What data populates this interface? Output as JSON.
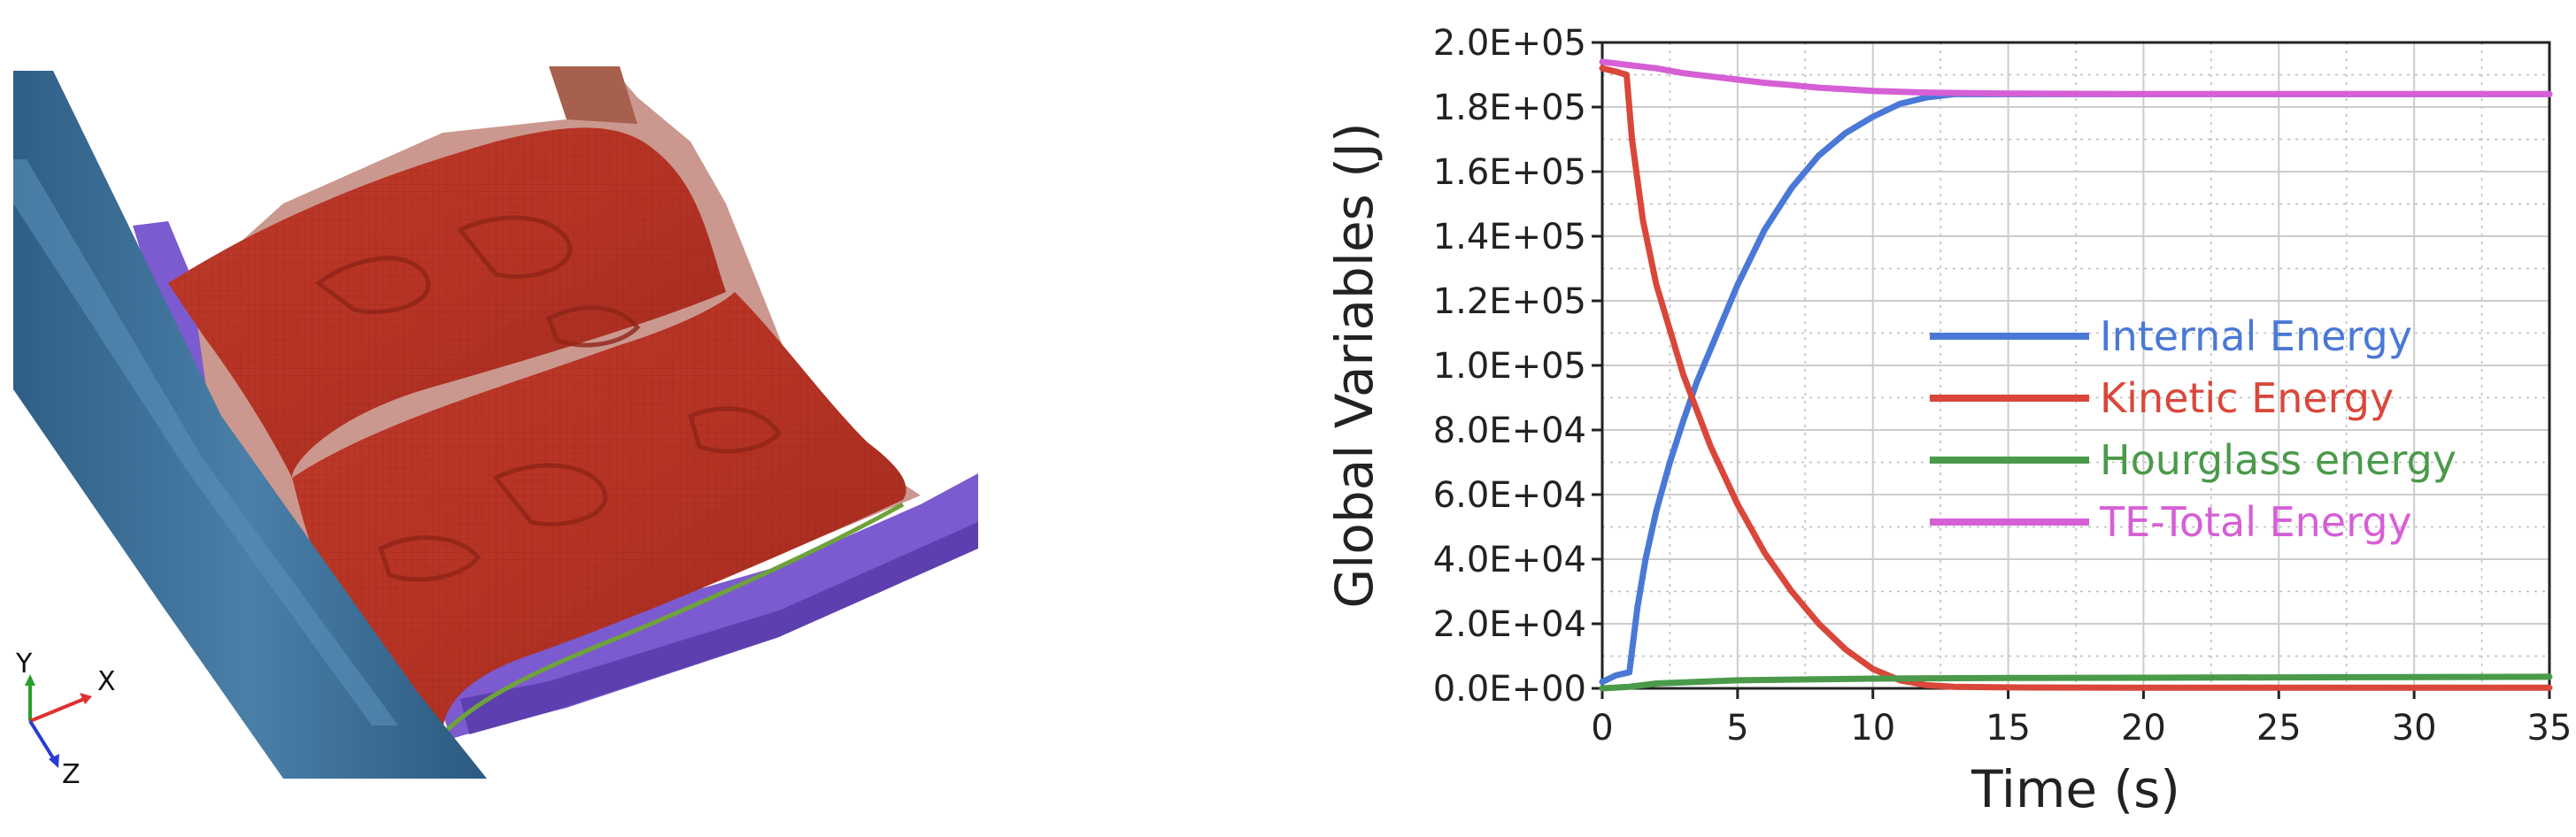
{
  "triad": {
    "y_label": "Y",
    "x_label": "X",
    "z_label": "Z"
  },
  "chart_data": {
    "type": "line",
    "title": "",
    "xlabel": "Time (s)",
    "ylabel": "Global Variables (J)",
    "xlim": [
      0,
      35
    ],
    "ylim": [
      0,
      200000
    ],
    "x_ticks": [
      "0",
      "5",
      "10",
      "15",
      "20",
      "25",
      "30",
      "35"
    ],
    "y_ticks": [
      "0.0E+00",
      "2.0E+04",
      "4.0E+04",
      "6.0E+04",
      "8.0E+04",
      "1.0E+05",
      "1.2E+05",
      "1.4E+05",
      "1.6E+05",
      "1.8E+05",
      "2.0E+05"
    ],
    "grid": true,
    "legend_position": "center-right",
    "series": [
      {
        "name": "Internal Energy",
        "color": "#4a78d6",
        "x": [
          0,
          0.5,
          1.0,
          1.3,
          1.6,
          2.0,
          2.5,
          3.0,
          3.5,
          4.0,
          5.0,
          6.0,
          7.0,
          8.0,
          9.0,
          10.0,
          11.0,
          12.0,
          13.0,
          15.0,
          20.0,
          25.0,
          30.0,
          35.0
        ],
        "y": [
          2000,
          4000,
          5000,
          25000,
          40000,
          55000,
          70000,
          83000,
          95000,
          105000,
          125000,
          142000,
          155000,
          165000,
          172000,
          177000,
          181000,
          183000,
          184000,
          184000,
          184000,
          184000,
          184000,
          184000
        ]
      },
      {
        "name": "Kinetic Energy",
        "color": "#d9473a",
        "x": [
          0,
          0.5,
          0.9,
          1.1,
          1.5,
          2.0,
          3.0,
          4.0,
          5.0,
          6.0,
          7.0,
          8.0,
          9.0,
          10.0,
          11.0,
          12.0,
          13.0,
          15.0,
          20.0,
          25.0,
          30.0,
          35.0
        ],
        "y": [
          192000,
          191000,
          190000,
          170000,
          145000,
          125000,
          97000,
          75000,
          57000,
          42000,
          30000,
          20000,
          12000,
          6000,
          2500,
          1000,
          500,
          300,
          200,
          200,
          200,
          200
        ]
      },
      {
        "name": "Hourglass energy",
        "color": "#4a9a4a",
        "x": [
          0,
          1,
          2,
          5,
          10,
          15,
          20,
          25,
          30,
          35
        ],
        "y": [
          0,
          500,
          1500,
          2500,
          3000,
          3200,
          3300,
          3400,
          3500,
          3600
        ]
      },
      {
        "name": "TE-Total Energy",
        "color": "#d65fd6",
        "x": [
          0,
          0.5,
          1,
          2,
          3,
          4,
          5,
          6,
          7,
          8,
          9,
          10,
          12,
          15,
          20,
          25,
          30,
          35
        ],
        "y": [
          194000,
          193500,
          193000,
          192000,
          190500,
          189500,
          188500,
          187500,
          186800,
          186000,
          185500,
          185000,
          184500,
          184200,
          184000,
          184000,
          184000,
          184000
        ]
      }
    ]
  }
}
